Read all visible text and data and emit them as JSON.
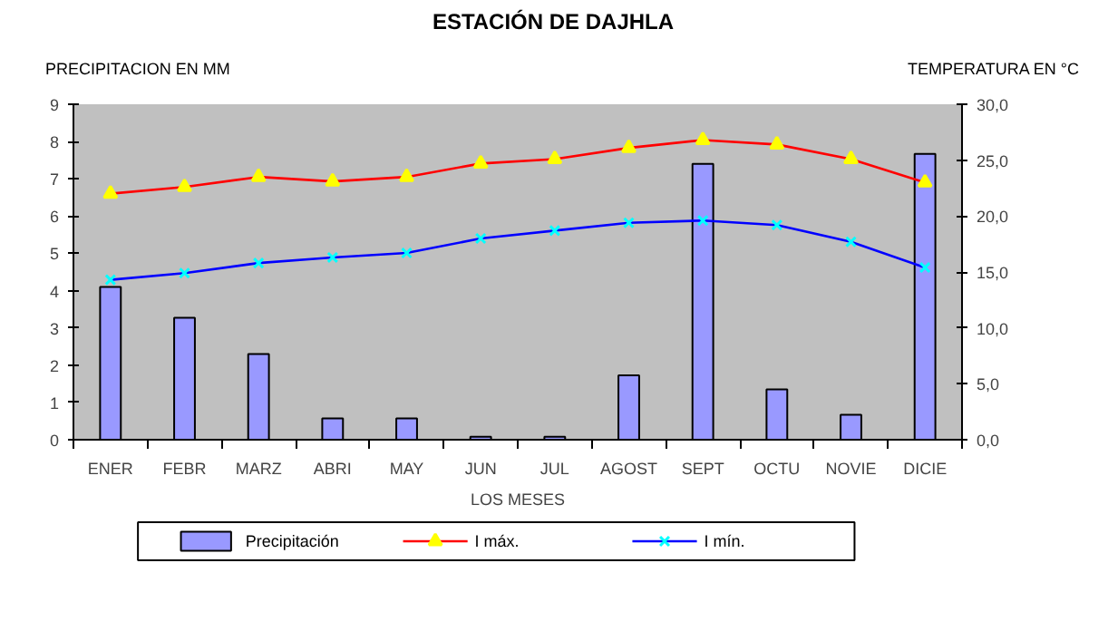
{
  "chart_data": {
    "type": "bar",
    "title": "ESTACIÓN DE DAJHLA",
    "xlabel": "LOS MESES",
    "ylabel": "PRECIPITACION EN MM",
    "y2label": "TEMPERATURA EN °C",
    "categories": [
      "ENER",
      "FEBR",
      "MARZ",
      "ABRI",
      "MAY",
      "JUN",
      "JUL",
      "AGOST",
      "SEPT",
      "OCTU",
      "NOVIE",
      "DICIE"
    ],
    "series": [
      {
        "name": "Precipitación",
        "color": "#9999ff",
        "values": [
          4.1,
          3.27,
          2.3,
          0.57,
          0.57,
          0.08,
          0.08,
          1.73,
          7.4,
          1.35,
          0.67,
          7.67
        ]
      },
      {
        "name": "I máx.",
        "type": "line",
        "axis": "y2",
        "color": "#ff0000",
        "marker": "triangle",
        "values": [
          22.0,
          22.6,
          23.5,
          23.1,
          23.5,
          24.7,
          25.1,
          26.1,
          26.8,
          26.4,
          25.1,
          23.0
        ]
      },
      {
        "name": "I mín.",
        "type": "line",
        "axis": "y2",
        "color": "#0000ff",
        "marker": "cross",
        "values": [
          14.3,
          14.9,
          15.8,
          16.3,
          16.7,
          18.0,
          18.7,
          19.4,
          19.6,
          19.2,
          17.7,
          15.4
        ]
      }
    ],
    "ylim": [
      0,
      9
    ],
    "yticks": [
      0,
      1,
      2,
      3,
      4,
      5,
      6,
      7,
      8,
      9
    ],
    "y2lim": [
      0,
      30
    ],
    "y2ticks": [
      {
        "value": 0,
        "label": "0,0"
      },
      {
        "value": 5,
        "label": "5,0"
      },
      {
        "value": 10,
        "label": "10,0"
      },
      {
        "value": 15,
        "label": "15,0"
      },
      {
        "value": 20,
        "label": "20,0"
      },
      {
        "value": 25,
        "label": "25,0"
      },
      {
        "value": 30,
        "label": "30,0"
      }
    ],
    "grid": false,
    "legend": "bottom"
  }
}
